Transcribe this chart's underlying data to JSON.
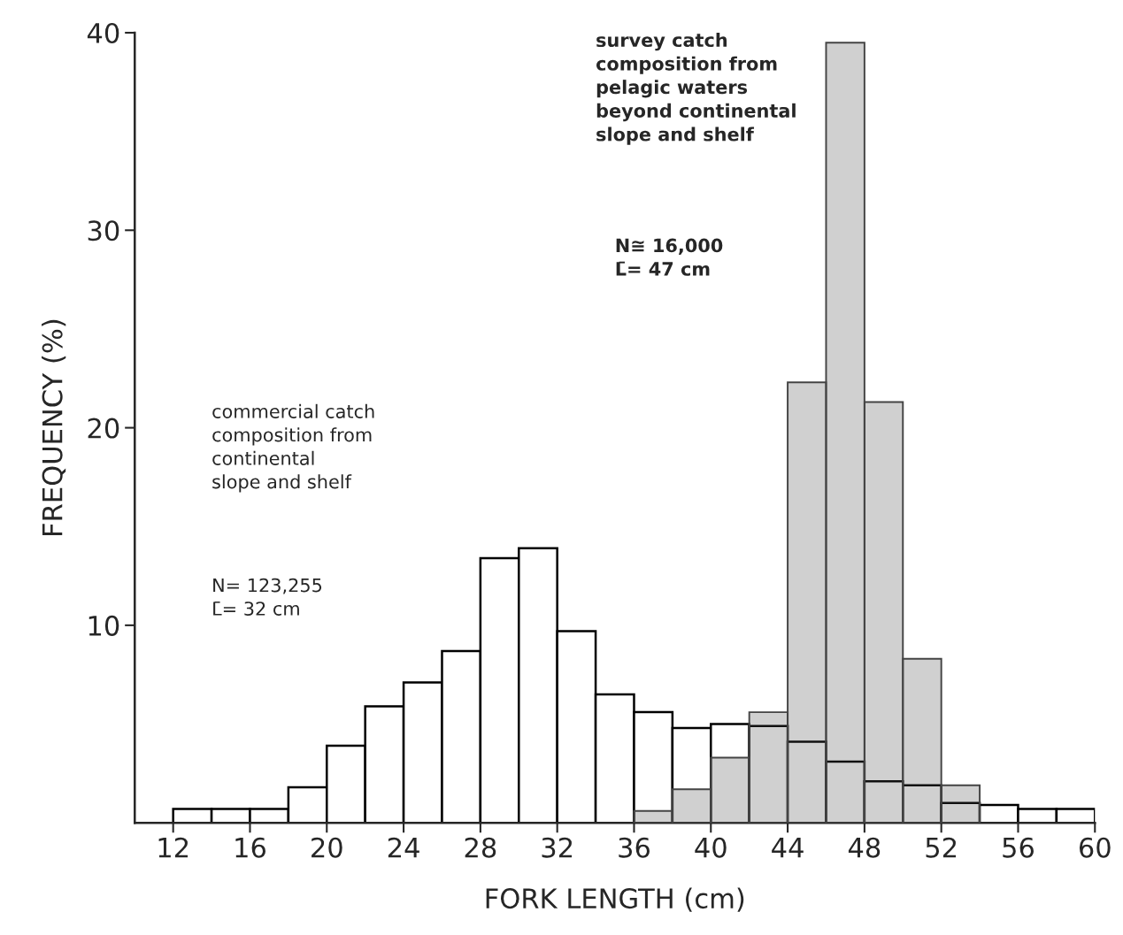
{
  "chart_data": {
    "type": "histogram",
    "xlabel": "FORK LENGTH (cm)",
    "ylabel": "FREQUENCY (%)",
    "bins": [
      12,
      14,
      16,
      18,
      20,
      22,
      24,
      26,
      28,
      30,
      32,
      34,
      36,
      38,
      40,
      42,
      44,
      46,
      48,
      50,
      52,
      54,
      56,
      58,
      60
    ],
    "series": [
      {
        "color": "#444444",
        "values": [
          0,
          0,
          0,
          0,
          0,
          0,
          0,
          0,
          0,
          0,
          0,
          0,
          0.6,
          1.7,
          3.3,
          5.6,
          22.3,
          39.5,
          21.3,
          8.3,
          1.9,
          0,
          0,
          0
        ]
      },
      {
        "color": "#ffffff",
        "values": [
          0.7,
          0.7,
          0.7,
          1.8,
          3.9,
          5.9,
          7.1,
          8.7,
          13.4,
          13.9,
          9.7,
          6.5,
          5.6,
          4.8,
          5.0,
          4.9,
          4.1,
          3.1,
          2.1,
          1.9,
          1.0,
          0.9,
          0.7,
          0.7
        ]
      }
    ],
    "xlim": [
      10,
      60
    ],
    "ylim": [
      0,
      40
    ],
    "xticks": [
      12,
      16,
      20,
      24,
      28,
      32,
      36,
      40,
      44,
      48,
      52,
      56,
      60
    ],
    "yticks": [
      10,
      20,
      30,
      40
    ],
    "annotations": [
      "survey catch\ncomposition from\npelagic waters\nbeyond continental\nslope and shelf",
      "N≅ 16,000\nL̄= 47 cm",
      "commercial catch\ncomposition from\ncontinental\nslope and shelf",
      "N= 123,255\nL̄= 32 cm"
    ],
    "grid": false,
    "legend": false
  }
}
